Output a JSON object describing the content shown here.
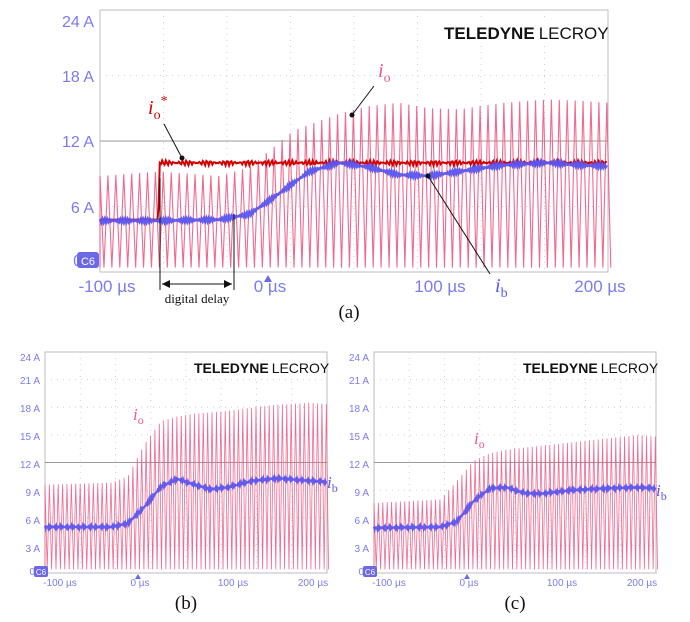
{
  "colors": {
    "io": "#ee5a84",
    "ib": "#5a55ee",
    "ref": "#d40000",
    "grid": "#cfcfcf",
    "axis_text": "#7b7bf0",
    "channel_badge": "#6b69e8"
  },
  "brand": {
    "bold": "TELEDYNE",
    "light": "LECROY"
  },
  "channel_badge": "C6",
  "annotations": {
    "digital_delay": "digital delay",
    "io_main": "i",
    "io_sub": "o",
    "ib_main": "i",
    "ib_sub": "b",
    "ref_main": "i",
    "ref_sub": "o",
    "ref_sup": "*"
  },
  "chart_data": [
    {
      "type": "line",
      "caption": "(a)",
      "xlim": [
        -120,
        220
      ],
      "ylim": [
        0,
        24
      ],
      "x_ticks": [
        "-100 µs",
        "0 µs",
        "100 µs",
        "200 µs"
      ],
      "x_tick_values": [
        -100,
        0,
        100,
        200
      ],
      "y_ticks": [
        "0",
        "6 A",
        "12 A",
        "18 A",
        "24 A"
      ],
      "y_tick_values": [
        0,
        6,
        12,
        18,
        24
      ],
      "series": [
        {
          "name": "io",
          "envelope_x": [
            -120,
            -80,
            -40,
            -20,
            10,
            40,
            60,
            80,
            100,
            120,
            150,
            180,
            200,
            220
          ],
          "envelope_y": [
            8.8,
            9.2,
            8.8,
            9.6,
            13.0,
            14.5,
            15.2,
            15.5,
            15.0,
            14.9,
            15.5,
            15.8,
            15.7,
            15.5
          ],
          "switch_period_us": 5.3
        },
        {
          "name": "ib",
          "x": [
            -120,
            -80,
            -40,
            -20,
            0,
            20,
            40,
            60,
            80,
            100,
            120,
            150,
            180,
            200,
            220
          ],
          "y": [
            4.7,
            4.7,
            4.8,
            5.3,
            7.2,
            9.2,
            10.0,
            9.6,
            8.9,
            8.8,
            9.2,
            9.8,
            10.0,
            9.8,
            9.7
          ]
        },
        {
          "name": "io*",
          "x": [
            -120,
            -81,
            -80,
            220
          ],
          "y": [
            4.8,
            4.8,
            10.0,
            10.0
          ]
        }
      ],
      "delay_start_us": -80,
      "delay_end_us": -20
    },
    {
      "type": "line",
      "caption": "(b)",
      "xlim": [
        -120,
        220
      ],
      "ylim": [
        0,
        24
      ],
      "x_ticks": [
        "-100 µs",
        "0 µs",
        "100 µs",
        "200 µs"
      ],
      "x_tick_values": [
        -100,
        0,
        100,
        200
      ],
      "y_ticks": [
        "0",
        "3 A",
        "6 A",
        "9 A",
        "12 A",
        "15 A",
        "18 A",
        "21 A",
        "24 A"
      ],
      "y_tick_values": [
        0,
        3,
        6,
        9,
        12,
        15,
        18,
        21,
        24
      ],
      "series": [
        {
          "name": "io",
          "envelope_x": [
            -120,
            -40,
            -20,
            0,
            20,
            40,
            60,
            100,
            150,
            200,
            220
          ],
          "envelope_y": [
            9.6,
            9.8,
            10.5,
            14.0,
            16.5,
            17.0,
            17.3,
            17.6,
            18.2,
            18.5,
            18.3
          ],
          "switch_period_us": 5.3
        },
        {
          "name": "ib",
          "x": [
            -120,
            -40,
            -20,
            0,
            20,
            40,
            60,
            80,
            100,
            130,
            160,
            200,
            220
          ],
          "y": [
            5.0,
            5.0,
            5.4,
            7.2,
            9.4,
            10.2,
            9.6,
            9.1,
            9.3,
            10.0,
            10.3,
            10.0,
            9.9
          ]
        }
      ]
    },
    {
      "type": "line",
      "caption": "(c)",
      "xlim": [
        -120,
        220
      ],
      "ylim": [
        0,
        24
      ],
      "x_ticks": [
        "-100 µs",
        "0 µs",
        "100 µs",
        "200 µs"
      ],
      "x_tick_values": [
        -100,
        0,
        100,
        200
      ],
      "y_ticks": [
        "0",
        "3 A",
        "6 A",
        "9 A",
        "12 A",
        "15 A",
        "18 A",
        "21 A",
        "24 A"
      ],
      "y_tick_values": [
        0,
        3,
        6,
        9,
        12,
        15,
        18,
        21,
        24
      ],
      "series": [
        {
          "name": "io",
          "envelope_x": [
            -120,
            -40,
            -20,
            0,
            20,
            40,
            80,
            120,
            160,
            200,
            220
          ],
          "envelope_y": [
            7.6,
            8.0,
            10.0,
            12.2,
            13.0,
            13.4,
            13.8,
            14.2,
            14.6,
            15.0,
            14.8
          ],
          "switch_period_us": 5.3
        },
        {
          "name": "ib",
          "x": [
            -120,
            -40,
            -20,
            0,
            20,
            40,
            60,
            80,
            120,
            160,
            200,
            220
          ],
          "y": [
            4.9,
            5.0,
            5.6,
            7.8,
            9.2,
            9.3,
            8.7,
            8.6,
            9.0,
            9.2,
            9.3,
            9.2
          ]
        }
      ]
    }
  ]
}
